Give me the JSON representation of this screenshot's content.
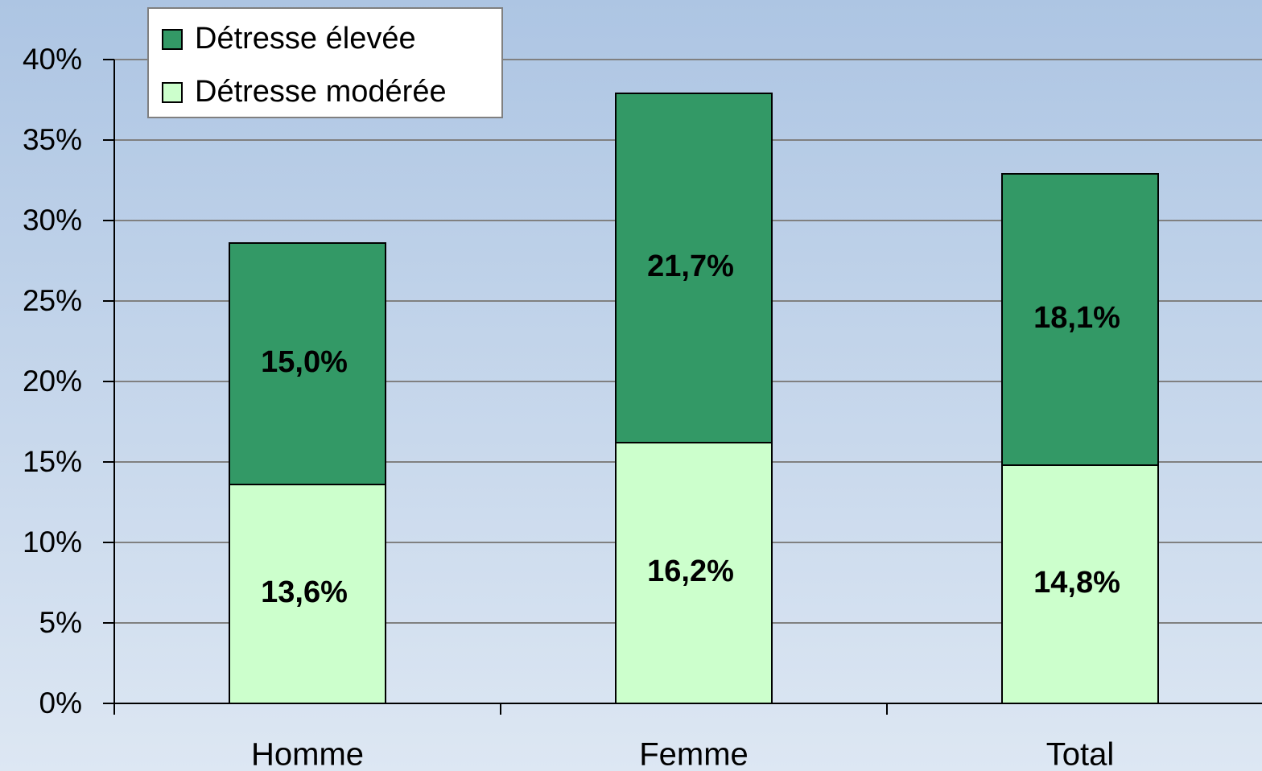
{
  "chart_data": {
    "type": "stacked_bar",
    "categories": [
      "Homme",
      "Femme",
      "Total"
    ],
    "series": [
      {
        "name": "Détresse modérée",
        "color": "#ccffcc",
        "values": [
          13.6,
          16.2,
          14.8
        ],
        "value_labels": [
          "13,6%",
          "16,2%",
          "14,8%"
        ]
      },
      {
        "name": "Détresse élevée",
        "color": "#339966",
        "values": [
          15.0,
          21.7,
          18.1
        ],
        "value_labels": [
          "15,0%",
          "21,7%",
          "18,1%"
        ]
      }
    ],
    "ylim": [
      0,
      40
    ],
    "yticks": [
      {
        "value": 0,
        "label": "0%"
      },
      {
        "value": 5,
        "label": "5%"
      },
      {
        "value": 10,
        "label": "10%"
      },
      {
        "value": 15,
        "label": "15%"
      },
      {
        "value": 20,
        "label": "20%"
      },
      {
        "value": 25,
        "label": "25%"
      },
      {
        "value": 30,
        "label": "30%"
      },
      {
        "value": 35,
        "label": "35%"
      },
      {
        "value": 40,
        "label": "40%"
      }
    ],
    "grid": true,
    "legend": "top-left"
  }
}
